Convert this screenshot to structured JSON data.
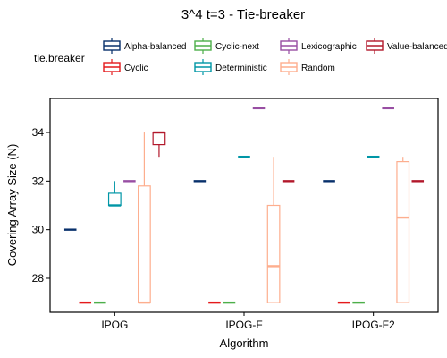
{
  "chart_data": {
    "type": "boxplot",
    "title": "3^4 t=3 - Tie-breaker",
    "xlabel": "Algorithm",
    "ylabel": "Covering Array Size (N)",
    "ylim": [
      26.6,
      35.4
    ],
    "yticks": [
      28,
      30,
      32,
      34
    ],
    "grid": false,
    "legend": {
      "title": "tie.breaker",
      "placement": "top",
      "entries": [
        {
          "name": "Alpha-balanced",
          "color": "#08306b"
        },
        {
          "name": "Cyclic",
          "color": "#e41a1c"
        },
        {
          "name": "Cyclic-next",
          "color": "#4daf4a"
        },
        {
          "name": "Deterministic",
          "color": "#0096a6"
        },
        {
          "name": "Lexicographic",
          "color": "#984ea3"
        },
        {
          "name": "Random",
          "color": "#fdae8e"
        },
        {
          "name": "Value-balanced",
          "color": "#b2182b"
        }
      ]
    },
    "categories": [
      "IPOG",
      "IPOG-F",
      "IPOG-F2"
    ],
    "series": [
      {
        "name": "Alpha-balanced",
        "boxes": [
          {
            "min": 30,
            "q1": 30,
            "median": 30,
            "q3": 30,
            "max": 30
          },
          {
            "min": 32,
            "q1": 32,
            "median": 32,
            "q3": 32,
            "max": 32
          },
          {
            "min": 32,
            "q1": 32,
            "median": 32,
            "q3": 32,
            "max": 32
          }
        ]
      },
      {
        "name": "Cyclic",
        "boxes": [
          {
            "min": 27,
            "q1": 27,
            "median": 27,
            "q3": 27,
            "max": 27
          },
          {
            "min": 27,
            "q1": 27,
            "median": 27,
            "q3": 27,
            "max": 27
          },
          {
            "min": 27,
            "q1": 27,
            "median": 27,
            "q3": 27,
            "max": 27
          }
        ]
      },
      {
        "name": "Cyclic-next",
        "boxes": [
          {
            "min": 27,
            "q1": 27,
            "median": 27,
            "q3": 27,
            "max": 27
          },
          {
            "min": 27,
            "q1": 27,
            "median": 27,
            "q3": 27,
            "max": 27
          },
          {
            "min": 27,
            "q1": 27,
            "median": 27,
            "q3": 27,
            "max": 27
          }
        ]
      },
      {
        "name": "Deterministic",
        "boxes": [
          {
            "min": 31,
            "q1": 31,
            "median": 31,
            "q3": 31.5,
            "max": 32
          },
          {
            "min": 33,
            "q1": 33,
            "median": 33,
            "q3": 33,
            "max": 33
          },
          {
            "min": 33,
            "q1": 33,
            "median": 33,
            "q3": 33,
            "max": 33
          }
        ]
      },
      {
        "name": "Lexicographic",
        "boxes": [
          {
            "min": 32,
            "q1": 32,
            "median": 32,
            "q3": 32,
            "max": 32
          },
          {
            "min": 35,
            "q1": 35,
            "median": 35,
            "q3": 35,
            "max": 35
          },
          {
            "min": 35,
            "q1": 35,
            "median": 35,
            "q3": 35,
            "max": 35
          }
        ]
      },
      {
        "name": "Random",
        "boxes": [
          {
            "min": 27,
            "q1": 27,
            "median": 27,
            "q3": 31.8,
            "max": 34
          },
          {
            "min": 27,
            "q1": 27,
            "median": 28.5,
            "q3": 31,
            "max": 33
          },
          {
            "min": 27,
            "q1": 27,
            "median": 30.5,
            "q3": 32.8,
            "max": 33
          }
        ]
      },
      {
        "name": "Value-balanced",
        "boxes": [
          {
            "min": 33,
            "q1": 33.5,
            "median": 34,
            "q3": 34,
            "max": 34
          },
          {
            "min": 32,
            "q1": 32,
            "median": 32,
            "q3": 32,
            "max": 32
          },
          {
            "min": 32,
            "q1": 32,
            "median": 32,
            "q3": 32,
            "max": 32
          }
        ]
      }
    ]
  }
}
